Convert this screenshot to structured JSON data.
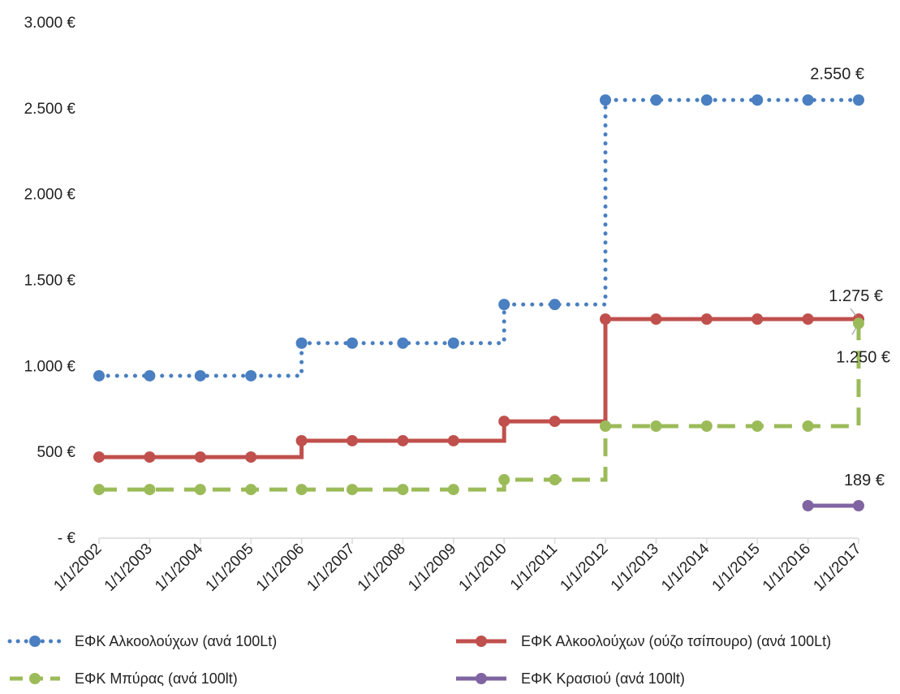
{
  "chart_data": {
    "type": "line",
    "x": [
      "1/1/2002",
      "1/1/2003",
      "1/1/2004",
      "1/1/2005",
      "1/1/2006",
      "1/1/2007",
      "1/1/2008",
      "1/1/2009",
      "1/1/2010",
      "1/1/2011",
      "1/1/2012",
      "1/1/2013",
      "1/1/2014",
      "1/1/2015",
      "1/1/2016",
      "1/1/2017"
    ],
    "y_ticks": [
      {
        "value": 0,
        "label": "-   €"
      },
      {
        "value": 500,
        "label": "500 €"
      },
      {
        "value": 1000,
        "label": "1.000 €"
      },
      {
        "value": 1500,
        "label": "1.500 €"
      },
      {
        "value": 2000,
        "label": "2.000 €"
      },
      {
        "value": 2500,
        "label": "2.500 €"
      },
      {
        "value": 3000,
        "label": "3.000 €"
      }
    ],
    "ylim": [
      0,
      3000
    ],
    "step": true,
    "grid": false,
    "legend_position": "bottom",
    "series": [
      {
        "name": "ΕΦΚ Αλκοολούχων (ανά 100Lt)",
        "color": "#4a7fc1",
        "dash": "dotted",
        "values": [
          945,
          945,
          945,
          945,
          1135,
          1135,
          1135,
          1135,
          1360,
          1360,
          2550,
          2550,
          2550,
          2550,
          2550,
          2550
        ]
      },
      {
        "name": "ΕΦΚ Αλκοολούχων (ούζο τσίπουρο) (ανά 100Lt)",
        "color": "#c0504d",
        "dash": "solid",
        "values": [
          472,
          472,
          472,
          472,
          567,
          567,
          567,
          567,
          680,
          680,
          1275,
          1275,
          1275,
          1275,
          1275,
          1275
        ]
      },
      {
        "name": "ΕΦΚ Μπύρας (ανά 100lt)",
        "color": "#9bbb59",
        "dash": "dashed",
        "values": [
          283,
          283,
          283,
          283,
          283,
          283,
          283,
          283,
          340,
          340,
          652,
          652,
          652,
          652,
          652,
          1250
        ]
      },
      {
        "name": "ΕΦΚ Κρασιού (ανά 100lt)",
        "color": "#8064a2",
        "dash": "solid",
        "values": [
          null,
          null,
          null,
          null,
          null,
          null,
          null,
          null,
          null,
          null,
          null,
          null,
          null,
          null,
          189,
          189
        ]
      }
    ],
    "data_labels": [
      {
        "text": "2.550 €",
        "series": 0,
        "index": 15
      },
      {
        "text": "1.275 €",
        "series": 1,
        "index": 15
      },
      {
        "text": "1.250 €",
        "series": 2,
        "index": 15
      },
      {
        "text": "189 €",
        "series": 3,
        "index": 15
      }
    ]
  }
}
